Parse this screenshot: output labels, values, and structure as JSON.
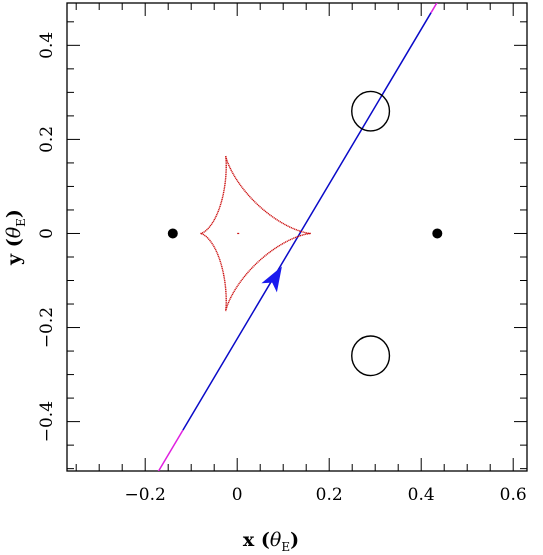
{
  "chart_data": {
    "type": "line",
    "title": "",
    "xlabel": "x (θ_E)",
    "ylabel": "y (θ_E)",
    "xlabel_main": "x",
    "xlabel_symbol": "θ",
    "xlabel_sub": "E",
    "ylabel_main": "y",
    "ylabel_symbol": "θ",
    "ylabel_sub": "E",
    "xlim": [
      -0.37,
      0.63
    ],
    "ylim": [
      -0.505,
      0.49
    ],
    "x_ticks": [
      -0.2,
      0,
      0.2,
      0.4,
      0.6
    ],
    "x_tick_labels": [
      "−0.2",
      "0",
      "0.2",
      "0.4",
      "0.6"
    ],
    "y_ticks": [
      -0.4,
      -0.2,
      0,
      0.2,
      0.4
    ],
    "y_tick_labels": [
      "−0.4",
      "−0.2",
      "0",
      "0.2",
      "0.4"
    ],
    "grid": false,
    "colors": {
      "trajectory": "#0a0ac8",
      "trajectory_ends": "#e020e0",
      "caustic": "#cc1111",
      "lens": "#000000",
      "arrow": "#1a1aee"
    },
    "trajectory": {
      "start": [
        -0.18,
        -0.52
      ],
      "end": [
        0.44,
        0.5
      ],
      "arrow_position": [
        0.085,
        -0.09
      ]
    },
    "lens_masses": [
      {
        "x": -0.14,
        "y": 0
      },
      {
        "x": 0.435,
        "y": 0
      }
    ],
    "caustic": {
      "cusps": [
        [
          -0.08,
          0
        ],
        [
          0.16,
          0
        ],
        [
          -0.025,
          0.165
        ],
        [
          -0.025,
          -0.165
        ]
      ],
      "center": [
        0,
        0
      ]
    },
    "images": [
      {
        "x": 0.29,
        "y": 0.26,
        "rx": 0.041,
        "ry": 0.042
      },
      {
        "x": 0.29,
        "y": -0.26,
        "rx": 0.041,
        "ry": 0.042
      }
    ]
  }
}
